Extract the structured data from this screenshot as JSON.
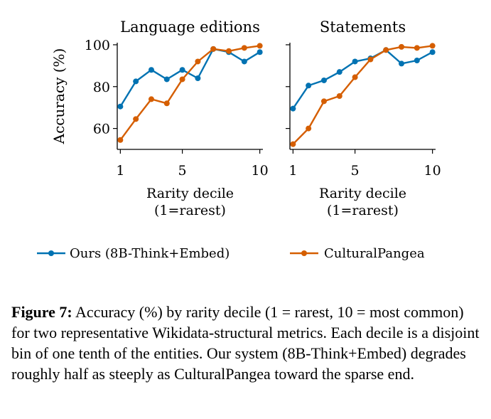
{
  "chart_data": [
    {
      "type": "line",
      "title": "Language editions",
      "xlabel": "Rarity decile\n(1=rarest)",
      "ylabel": "Accuracy (%)",
      "x": [
        1,
        2,
        3,
        4,
        5,
        6,
        7,
        8,
        9,
        10
      ],
      "xticks": [
        "1",
        "5",
        "10"
      ],
      "yticks": [
        "60",
        "80",
        "100"
      ],
      "ylim": [
        50,
        101
      ],
      "xlim": [
        0.8,
        10.2
      ],
      "series": [
        {
          "name": "Ours (8B-Think+Embed)",
          "color": "#0072b2",
          "values": [
            70.5,
            82.5,
            88,
            83.5,
            88,
            84,
            98,
            96.5,
            92,
            96.5
          ]
        },
        {
          "name": "CulturalPangea",
          "color": "#d55e00",
          "values": [
            54.5,
            64.5,
            74,
            72,
            83.5,
            92,
            98,
            97,
            98.5,
            99.5
          ]
        }
      ]
    },
    {
      "type": "line",
      "title": "Statements",
      "xlabel": "Rarity decile\n(1=rarest)",
      "ylabel": "",
      "x": [
        1,
        2,
        3,
        4,
        5,
        6,
        7,
        8,
        9,
        10
      ],
      "xticks": [
        "1",
        "5",
        "10"
      ],
      "yticks": [
        "60",
        "80",
        "100"
      ],
      "ylim": [
        50,
        101
      ],
      "xlim": [
        0.8,
        10.2
      ],
      "series": [
        {
          "name": "Ours (8B-Think+Embed)",
          "color": "#0072b2",
          "values": [
            69.5,
            80.5,
            83,
            87,
            92,
            93.5,
            97.5,
            91,
            92.5,
            96.5
          ]
        },
        {
          "name": "CulturalPangea",
          "color": "#d55e00",
          "values": [
            52.5,
            60,
            73,
            75.5,
            84.5,
            93,
            97.5,
            99,
            98.5,
            99.5
          ]
        }
      ]
    }
  ],
  "legend": [
    {
      "name": "Ours (8B-Think+Embed)",
      "color": "#0072b2"
    },
    {
      "name": "CulturalPangea",
      "color": "#d55e00"
    }
  ],
  "caption": {
    "label": "Figure 7:",
    "text": " Accuracy (%) by rarity decile (1 = rarest, 10 = most common) for two representative Wikidata-structural metrics. Each decile is a disjoint bin of one tenth of the entities. Our system (8B-Think+Embed) degrades roughly half as steeply as CulturalPangea toward the sparse end."
  }
}
